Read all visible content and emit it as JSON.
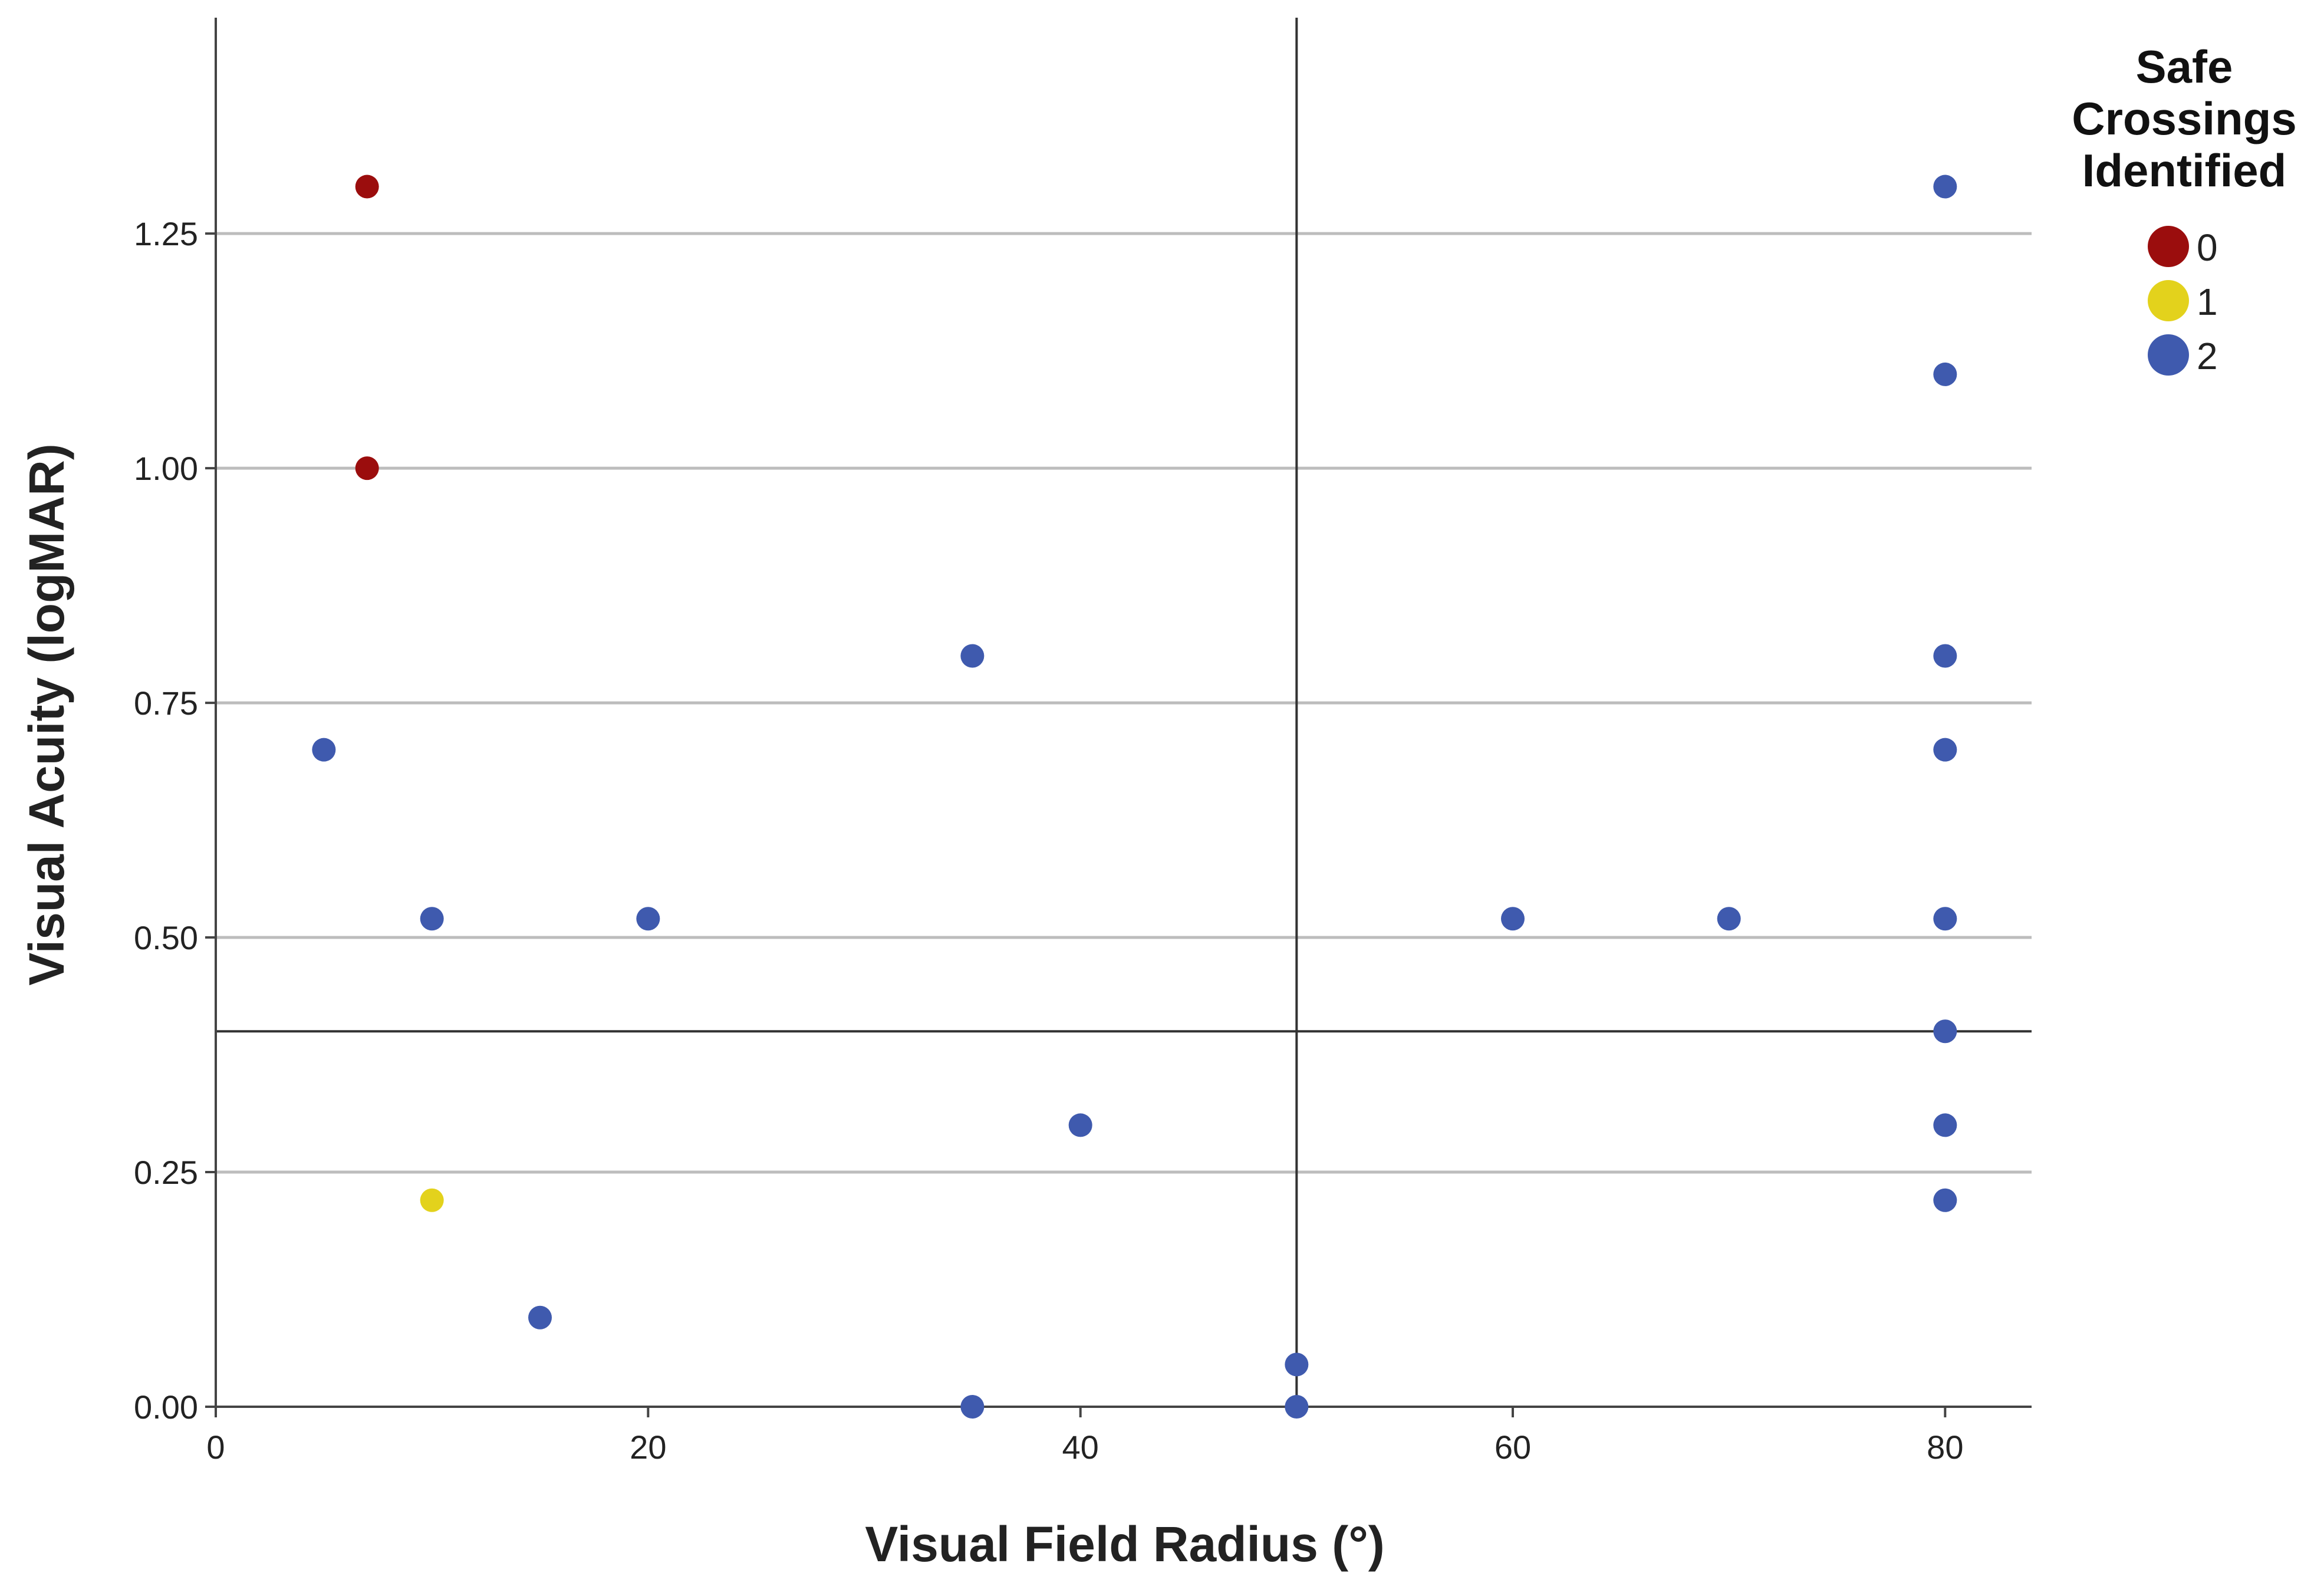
{
  "chart_data": {
    "type": "scatter",
    "xlabel": "Visual Field Radius (°)",
    "ylabel": "Visual Acuity (logMAR)",
    "xlim": [
      0,
      84
    ],
    "ylim": [
      0,
      1.48
    ],
    "x_ticks": [
      0,
      20,
      40,
      60,
      80
    ],
    "x_tick_labels": [
      "0",
      "20",
      "40",
      "60",
      "80"
    ],
    "y_ticks": [
      0,
      0.25,
      0.5,
      0.75,
      1.0,
      1.25
    ],
    "y_tick_labels": [
      "0.00",
      "0.25",
      "0.50",
      "0.75",
      "1.00",
      "1.25"
    ],
    "grid": "horizontal",
    "reference_lines": {
      "x": 50,
      "y": 0.4
    },
    "legend": {
      "title": [
        "Safe",
        "Crossings",
        "Identified"
      ],
      "placement": "top-right"
    },
    "series": [
      {
        "name": "0",
        "color": "#9b0d0d",
        "points": [
          [
            7,
            1.3
          ],
          [
            7,
            1.0
          ]
        ]
      },
      {
        "name": "1",
        "color": "#e3d21c",
        "points": [
          [
            10,
            0.22
          ]
        ]
      },
      {
        "name": "2",
        "color": "#3f5aae",
        "points": [
          [
            5,
            0.7
          ],
          [
            10,
            0.52
          ],
          [
            15,
            0.095
          ],
          [
            20,
            0.52
          ],
          [
            35,
            0.8
          ],
          [
            35,
            0.0
          ],
          [
            40,
            0.3
          ],
          [
            50,
            0.045
          ],
          [
            50,
            0.0
          ],
          [
            60,
            0.52
          ],
          [
            70,
            0.52
          ],
          [
            80,
            1.3
          ],
          [
            80,
            1.1
          ],
          [
            80,
            0.8
          ],
          [
            80,
            0.7
          ],
          [
            80,
            0.52
          ],
          [
            80,
            0.4
          ],
          [
            80,
            0.3
          ],
          [
            80,
            0.22
          ]
        ]
      }
    ]
  }
}
